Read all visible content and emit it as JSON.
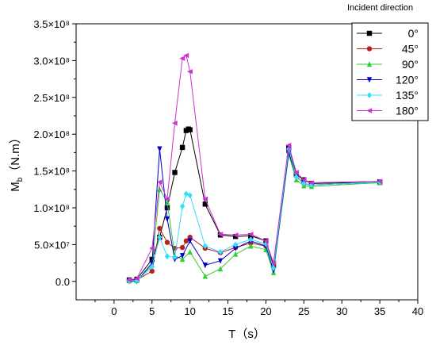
{
  "chart_data": {
    "type": "line",
    "xlabel": "T（s）",
    "ylabel_main": "M",
    "ylabel_sub": "b",
    "ylabel_unit": "（N.m）",
    "xlim": [
      -5,
      40
    ],
    "ylim": [
      -25000000.0,
      350000000.0
    ],
    "x_ticks": [
      0,
      5,
      10,
      15,
      20,
      25,
      30,
      35,
      40
    ],
    "x_tick_labels": [
      "0",
      "5",
      "10",
      "15",
      "20",
      "25",
      "30",
      "35",
      "40"
    ],
    "y_ticks": [
      0,
      50000000.0,
      100000000.0,
      150000000.0,
      200000000.0,
      250000000.0,
      300000000.0,
      350000000.0
    ],
    "y_tick_labels": [
      "0.0",
      "5.0×10⁷",
      "1.0×10⁸",
      "1.5×10⁸",
      "2.0×10⁸",
      "2.5×10⁸",
      "3.0×10⁸",
      "3.5×10⁸"
    ],
    "legend_title": "Incident direction",
    "legend_position": "top-right",
    "grid": false,
    "series": [
      {
        "name": "0°",
        "color": "#000000",
        "marker": "square",
        "x": [
          2,
          3,
          5,
          6,
          7,
          8,
          9,
          9.5,
          9.8,
          10,
          12,
          14,
          16,
          18,
          20,
          21,
          23,
          24,
          25,
          26,
          35
        ],
        "y": [
          2000000.0,
          3000000.0,
          30000000.0,
          60000000.0,
          100000000.0,
          148000000.0,
          182000000.0,
          205000000.0,
          207000000.0,
          206000000.0,
          105000000.0,
          63000000.0,
          61000000.0,
          62000000.0,
          55000000.0,
          22000000.0,
          182000000.0,
          145000000.0,
          138000000.0,
          133000000.0,
          135000000.0
        ]
      },
      {
        "name": "45°",
        "color": "#b22222",
        "marker": "circle",
        "x": [
          2,
          3,
          5,
          6,
          7,
          8,
          9,
          9.5,
          10,
          12,
          14,
          16,
          18,
          20,
          21,
          23,
          24,
          25,
          26,
          35
        ],
        "y": [
          1000000.0,
          2000000.0,
          14000000.0,
          72000000.0,
          53000000.0,
          45000000.0,
          46000000.0,
          55000000.0,
          60000000.0,
          45000000.0,
          39000000.0,
          46000000.0,
          52000000.0,
          48000000.0,
          19000000.0,
          176000000.0,
          143000000.0,
          133000000.0,
          131000000.0,
          135000000.0
        ]
      },
      {
        "name": "90°",
        "color": "#33cc33",
        "marker": "triangle-up",
        "x": [
          2,
          3,
          5,
          6,
          7,
          8,
          9,
          10,
          12,
          14,
          16,
          18,
          20,
          21,
          23,
          24,
          25,
          26,
          35
        ],
        "y": [
          1000000.0,
          1000000.0,
          22000000.0,
          125000000.0,
          108000000.0,
          35000000.0,
          30000000.0,
          40000000.0,
          7000000.0,
          17000000.0,
          37000000.0,
          48000000.0,
          43000000.0,
          12000000.0,
          172000000.0,
          138000000.0,
          130000000.0,
          129000000.0,
          134000000.0
        ]
      },
      {
        "name": "120°",
        "color": "#0000cc",
        "marker": "triangle-down",
        "x": [
          2,
          3,
          5,
          6,
          7,
          8,
          9,
          10,
          12,
          14,
          16,
          18,
          20,
          21,
          23,
          24,
          25,
          26,
          35
        ],
        "y": [
          0,
          0,
          25000000.0,
          180000000.0,
          85000000.0,
          30000000.0,
          35000000.0,
          55000000.0,
          22000000.0,
          28000000.0,
          45000000.0,
          55000000.0,
          48000000.0,
          15000000.0,
          175000000.0,
          142000000.0,
          133000000.0,
          131000000.0,
          135000000.0
        ]
      },
      {
        "name": "135°",
        "color": "#33ddff",
        "marker": "diamond",
        "x": [
          2,
          3,
          5,
          6,
          7,
          8,
          9,
          9.5,
          10,
          12,
          14,
          16,
          18,
          20,
          21,
          23,
          24,
          25,
          26,
          35
        ],
        "y": [
          1000000.0,
          1000000.0,
          20000000.0,
          60000000.0,
          34000000.0,
          33000000.0,
          102000000.0,
          119000000.0,
          117000000.0,
          48000000.0,
          40000000.0,
          50000000.0,
          57000000.0,
          51000000.0,
          18000000.0,
          180000000.0,
          142000000.0,
          133000000.0,
          131000000.0,
          135000000.0
        ]
      },
      {
        "name": "180°",
        "color": "#cc33cc",
        "marker": "triangle-left",
        "x": [
          2,
          3,
          5,
          6,
          7,
          8,
          9,
          9.5,
          10,
          12,
          14,
          16,
          18,
          20,
          21,
          23,
          24,
          25,
          26,
          35
        ],
        "y": [
          2000000.0,
          4000000.0,
          45000000.0,
          135000000.0,
          112000000.0,
          215000000.0,
          303000000.0,
          307000000.0,
          285000000.0,
          112000000.0,
          64000000.0,
          63000000.0,
          64000000.0,
          55000000.0,
          25000000.0,
          185000000.0,
          148000000.0,
          138000000.0,
          134000000.0,
          136000000.0
        ]
      }
    ]
  }
}
